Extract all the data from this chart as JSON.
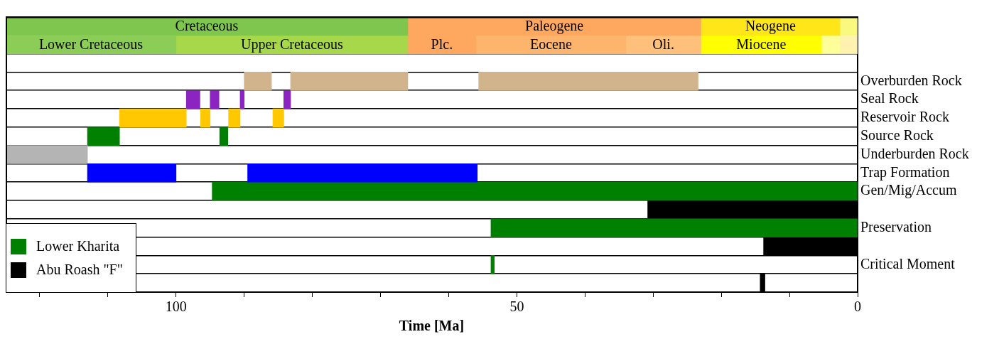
{
  "chart_data": {
    "type": "bar",
    "orientation": "horizontal",
    "xlabel": "Time [Ma]",
    "xlim": [
      125,
      0
    ],
    "xticks": [
      {
        "value": 120,
        "label": null
      },
      {
        "value": 110,
        "label": null
      },
      100,
      {
        "value": 90,
        "label": null
      },
      {
        "value": 80,
        "label": null
      },
      {
        "value": 70,
        "label": null
      },
      {
        "value": 60,
        "label": null
      },
      50,
      {
        "value": 40,
        "label": null
      },
      {
        "value": 30,
        "label": null
      },
      {
        "value": 20,
        "label": null
      },
      {
        "value": 10,
        "label": null
      },
      0
    ],
    "categories": [
      null,
      null,
      null,
      "Overburden Rock",
      "Seal Rock",
      "Reservoir Rock",
      "Source Rock",
      "Underburden Rock",
      "Trap Formation",
      "Gen/Mig/Accum",
      null,
      "Preservation",
      null,
      "Critical Moment",
      null
    ],
    "grid": "y",
    "legend": "bottom left",
    "series": [
      {
        "values": [
          59,
          25,
          null,
          null,
          null,
          null,
          null,
          null,
          null,
          null,
          null,
          null,
          null,
          null,
          null
        ],
        "base": [
          66,
          100,
          null,
          null,
          null,
          null,
          null,
          null,
          null,
          null,
          null,
          null,
          null,
          null,
          null
        ],
        "colors": [
          "#7fc64e",
          "#8ccd57",
          null,
          null,
          null,
          null,
          null,
          null,
          null,
          null,
          null,
          null,
          null,
          null,
          null
        ],
        "value_labels": [
          "Cretaceous",
          "Lower Cretaceous",
          null,
          null,
          null,
          null,
          null,
          null,
          null,
          null,
          null,
          null,
          null,
          null,
          null
        ]
      },
      {
        "values": [
          43,
          34,
          null,
          null,
          null,
          null,
          null,
          null,
          null,
          null,
          null,
          null,
          null,
          null,
          null
        ],
        "base": [
          23,
          66,
          null,
          null,
          null,
          null,
          null,
          null,
          null,
          null,
          null,
          null,
          null,
          null,
          null
        ],
        "colors": [
          "#fda75f",
          "#a6d84a",
          null,
          null,
          null,
          null,
          null,
          null,
          null,
          null,
          null,
          null,
          null,
          null,
          null
        ],
        "value_labels": [
          "Paleogene",
          "Upper Cretaceous",
          null,
          null,
          null,
          null,
          null,
          null,
          null,
          null,
          null,
          null,
          null,
          null,
          null
        ]
      },
      {
        "values": [
          20.4,
          10,
          null,
          null,
          null,
          null,
          null,
          null,
          null,
          null,
          null,
          null,
          null,
          null,
          null
        ],
        "base": [
          2.6,
          56,
          null,
          null,
          null,
          null,
          null,
          null,
          null,
          null,
          null,
          null,
          null,
          null,
          null
        ],
        "colors": [
          "#ffe619",
          "#fda75f",
          null,
          null,
          null,
          null,
          null,
          null,
          null,
          null,
          null,
          null,
          null,
          null,
          null
        ],
        "value_labels": [
          "Neogene",
          "Plc.",
          null,
          null,
          null,
          null,
          null,
          null,
          null,
          null,
          null,
          null,
          null,
          null,
          null
        ]
      },
      {
        "values": [
          2.6,
          22,
          null,
          null,
          null,
          null,
          null,
          null,
          null,
          null,
          null,
          null,
          null,
          null,
          null
        ],
        "base": [
          0,
          34,
          null,
          null,
          null,
          null,
          null,
          null,
          null,
          null,
          null,
          null,
          null,
          null,
          null
        ],
        "colors": [
          "#f9f97f",
          "#fdb46c",
          null,
          null,
          null,
          null,
          null,
          null,
          null,
          null,
          null,
          null,
          null,
          null,
          null
        ],
        "value_labels": [
          null,
          "Eocene",
          null,
          null,
          null,
          null,
          null,
          null,
          null,
          null,
          null,
          null,
          null,
          null,
          null
        ]
      },
      {
        "values": [
          null,
          11,
          null,
          null,
          null,
          null,
          null,
          null,
          null,
          null,
          null,
          null,
          null,
          null,
          null
        ],
        "base": [
          null,
          23,
          null,
          null,
          null,
          null,
          null,
          null,
          null,
          null,
          null,
          null,
          null,
          null,
          null
        ],
        "colors": [
          null,
          "#fec07a",
          null,
          null,
          null,
          null,
          null,
          null,
          null,
          null,
          null,
          null,
          null,
          null,
          null
        ],
        "value_labels": [
          null,
          "Oli.",
          null,
          null,
          null,
          null,
          null,
          null,
          null,
          null,
          null,
          null,
          null,
          null,
          null
        ]
      },
      {
        "values": [
          null,
          17.7,
          null,
          null,
          null,
          null,
          null,
          null,
          null,
          null,
          null,
          null,
          null,
          null,
          null
        ],
        "base": [
          null,
          5.3,
          null,
          null,
          null,
          null,
          null,
          null,
          null,
          null,
          null,
          null,
          null,
          null,
          null
        ],
        "colors": [
          null,
          "#ffff00",
          null,
          null,
          null,
          null,
          null,
          null,
          null,
          null,
          null,
          null,
          null,
          null,
          null
        ],
        "value_labels": [
          null,
          "Miocene",
          null,
          null,
          null,
          null,
          null,
          null,
          null,
          null,
          null,
          null,
          null,
          null,
          null
        ]
      },
      {
        "values": [
          null,
          2.7,
          null,
          null,
          null,
          null,
          null,
          null,
          null,
          null,
          null,
          null,
          null,
          null,
          null
        ],
        "base": [
          null,
          2.6,
          null,
          null,
          null,
          null,
          null,
          null,
          null,
          null,
          null,
          null,
          null,
          null,
          null
        ],
        "colors": [
          null,
          "#ffff99",
          null,
          null,
          null,
          null,
          null,
          null,
          null,
          null,
          null,
          null,
          null,
          null,
          null
        ]
      },
      {
        "values": [
          null,
          2.6,
          null,
          null,
          null,
          null,
          null,
          null,
          null,
          null,
          null,
          null,
          null,
          null,
          null
        ],
        "base": [
          null,
          0,
          null,
          null,
          null,
          null,
          null,
          null,
          null,
          null,
          null,
          null,
          null,
          null,
          null
        ],
        "colors": [
          null,
          "#fff2ae",
          null,
          null,
          null,
          null,
          null,
          null,
          null,
          null,
          null,
          null,
          null,
          null,
          null
        ]
      },
      {
        "values": [
          null,
          null,
          null,
          4,
          2,
          9.8,
          4.7,
          12,
          13,
          null,
          null,
          null,
          null,
          null,
          null
        ],
        "base": [
          null,
          null,
          null,
          86,
          96.5,
          98.5,
          108.3,
          113,
          100,
          null,
          null,
          null,
          null,
          null,
          null
        ],
        "colors": [
          null,
          null,
          null,
          "#d2b48c",
          "#8b24c0",
          "#ffc800",
          "#008000",
          "#b4b4b4",
          "#0000ff",
          null,
          null,
          null,
          null,
          null,
          null
        ]
      },
      {
        "values": [
          null,
          null,
          null,
          17.2,
          1.3,
          1.4,
          1.2,
          null,
          33.7,
          null,
          null,
          null,
          null,
          null,
          null
        ],
        "base": [
          null,
          null,
          null,
          66,
          93.7,
          95,
          92.4,
          null,
          55.8,
          null,
          null,
          null,
          null,
          null,
          null
        ],
        "colors": [
          null,
          null,
          null,
          "#d2b48c",
          "#8b24c0",
          "#ffc800",
          "#008000",
          null,
          "#0000ff",
          null,
          null,
          null,
          null,
          null,
          null
        ]
      },
      {
        "values": [
          null,
          null,
          null,
          32.2,
          0.6,
          1.7,
          null,
          null,
          null,
          null,
          null,
          null,
          null,
          null,
          null
        ],
        "base": [
          null,
          null,
          null,
          23.4,
          90,
          90.6,
          null,
          null,
          null,
          null,
          null,
          null,
          null,
          null,
          null
        ],
        "colors": [
          null,
          null,
          null,
          "#d2b48c",
          "#8b24c0",
          "#ffc800",
          null,
          null,
          null,
          null,
          null,
          null,
          null,
          null,
          null
        ]
      },
      {
        "values": [
          null,
          null,
          null,
          null,
          1,
          1.6,
          null,
          null,
          null,
          null,
          null,
          null,
          null,
          null,
          null
        ],
        "base": [
          null,
          null,
          null,
          null,
          83.2,
          84.2,
          null,
          null,
          null,
          null,
          null,
          null,
          null,
          null,
          null
        ],
        "colors": [
          null,
          null,
          null,
          null,
          "#8b24c0",
          "#ffc800",
          null,
          null,
          null,
          null,
          null,
          null,
          null,
          null,
          null
        ]
      },
      {
        "name": "Lower Kharita",
        "color": "#008000",
        "values": [
          null,
          null,
          null,
          null,
          null,
          null,
          null,
          null,
          null,
          94.7,
          null,
          53.8,
          null,
          0.5,
          null
        ],
        "base": [
          null,
          null,
          null,
          null,
          null,
          null,
          null,
          null,
          null,
          0,
          null,
          0,
          null,
          53.3,
          null
        ]
      },
      {
        "name": "Abu Roash \"F\"",
        "color": "#000000",
        "values": [
          null,
          null,
          null,
          null,
          null,
          null,
          null,
          null,
          null,
          null,
          30.8,
          null,
          13.8,
          null,
          0.7
        ],
        "base": [
          null,
          null,
          null,
          null,
          null,
          null,
          null,
          null,
          null,
          null,
          0,
          null,
          0,
          null,
          13.6
        ]
      }
    ]
  }
}
